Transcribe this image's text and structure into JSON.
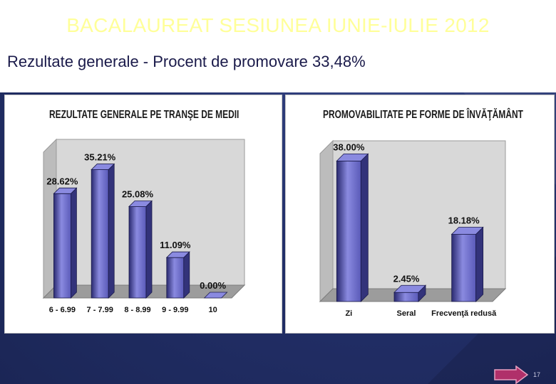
{
  "header": {
    "title": "BACALAUREAT SESIUNEA IUNIE-IULIE 2012",
    "subtitle": "Rezultate generale - Procent de promovare 33,48%"
  },
  "footer": {
    "page_number": "17"
  },
  "colors": {
    "bar": "#5a5ab8",
    "bar_dark": "#33337a",
    "bar_top": "#8a8ae0",
    "background": "#1e2a5a",
    "title": "#ffff99"
  },
  "chart_data": [
    {
      "type": "bar",
      "title": "REZULTATE GENERALE PE TRANŞE DE MEDII",
      "categories": [
        "6 - 6.99",
        "7 - 7.99",
        "8 - 8.99",
        "9 - 9.99",
        "10"
      ],
      "values": [
        28.62,
        35.21,
        25.08,
        11.09,
        0.0
      ],
      "data_labels": [
        "28.62%",
        "35.21%",
        "25.08%",
        "11.09%",
        "0.00%"
      ],
      "ylim": [
        0,
        40
      ],
      "grid": false,
      "legend": "none"
    },
    {
      "type": "bar",
      "title": "PROMOVABILITATE PE FORME DE ÎNVĂŢĂMÂNT",
      "categories": [
        "Zi",
        "Seral",
        "Frecvenţă redusă"
      ],
      "values": [
        38.0,
        2.45,
        18.18
      ],
      "data_labels": [
        "38.00%",
        "2.45%",
        "18.18%"
      ],
      "ylim": [
        0,
        40
      ],
      "grid": false,
      "legend": "none"
    }
  ]
}
